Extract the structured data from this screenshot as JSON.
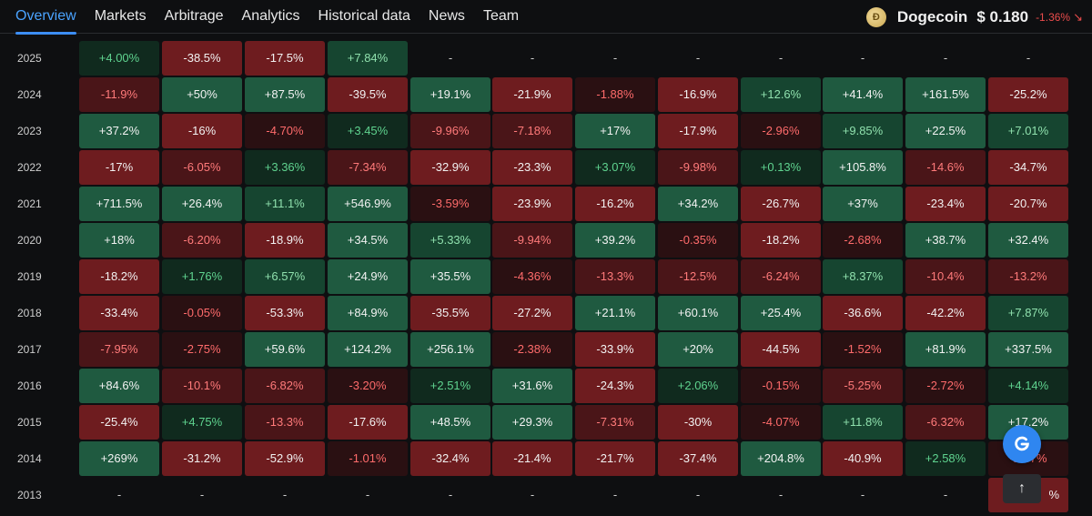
{
  "nav": {
    "tabs": [
      {
        "label": "Overview",
        "active": true
      },
      {
        "label": "Markets",
        "active": false
      },
      {
        "label": "Arbitrage",
        "active": false
      },
      {
        "label": "Analytics",
        "active": false
      },
      {
        "label": "Historical data",
        "active": false
      },
      {
        "label": "News",
        "active": false
      },
      {
        "label": "Team",
        "active": false
      }
    ]
  },
  "coin": {
    "name": "Dogecoin",
    "price": "$ 0.180",
    "change": "-1.36%",
    "change_icon": "arrow-down-right-icon"
  },
  "table": {
    "rows": [
      {
        "year": "2025",
        "cells": [
          "+4.00%",
          "-38.5%",
          "-17.5%",
          "+7.84%",
          "-",
          "-",
          "-",
          "-",
          "-",
          "-",
          "-",
          "-"
        ]
      },
      {
        "year": "2024",
        "cells": [
          "-11.9%",
          "+50%",
          "+87.5%",
          "-39.5%",
          "+19.1%",
          "-21.9%",
          "-1.88%",
          "-16.9%",
          "+12.6%",
          "+41.4%",
          "+161.5%",
          "-25.2%"
        ]
      },
      {
        "year": "2023",
        "cells": [
          "+37.2%",
          "-16%",
          "-4.70%",
          "+3.45%",
          "-9.96%",
          "-7.18%",
          "+17%",
          "-17.9%",
          "-2.96%",
          "+9.85%",
          "+22.5%",
          "+7.01%"
        ]
      },
      {
        "year": "2022",
        "cells": [
          "-17%",
          "-6.05%",
          "+3.36%",
          "-7.34%",
          "-32.9%",
          "-23.3%",
          "+3.07%",
          "-9.98%",
          "+0.13%",
          "+105.8%",
          "-14.6%",
          "-34.7%"
        ]
      },
      {
        "year": "2021",
        "cells": [
          "+711.5%",
          "+26.4%",
          "+11.1%",
          "+546.9%",
          "-3.59%",
          "-23.9%",
          "-16.2%",
          "+34.2%",
          "-26.7%",
          "+37%",
          "-23.4%",
          "-20.7%"
        ]
      },
      {
        "year": "2020",
        "cells": [
          "+18%",
          "-6.20%",
          "-18.9%",
          "+34.5%",
          "+5.33%",
          "-9.94%",
          "+39.2%",
          "-0.35%",
          "-18.2%",
          "-2.68%",
          "+38.7%",
          "+32.4%"
        ]
      },
      {
        "year": "2019",
        "cells": [
          "-18.2%",
          "+1.76%",
          "+6.57%",
          "+24.9%",
          "+35.5%",
          "-4.36%",
          "-13.3%",
          "-12.5%",
          "-6.24%",
          "+8.37%",
          "-10.4%",
          "-13.2%"
        ]
      },
      {
        "year": "2018",
        "cells": [
          "-33.4%",
          "-0.05%",
          "-53.3%",
          "+84.9%",
          "-35.5%",
          "-27.2%",
          "+21.1%",
          "+60.1%",
          "+25.4%",
          "-36.6%",
          "-42.2%",
          "+7.87%"
        ]
      },
      {
        "year": "2017",
        "cells": [
          "-7.95%",
          "-2.75%",
          "+59.6%",
          "+124.2%",
          "+256.1%",
          "-2.38%",
          "-33.9%",
          "+20%",
          "-44.5%",
          "-1.52%",
          "+81.9%",
          "+337.5%"
        ]
      },
      {
        "year": "2016",
        "cells": [
          "+84.6%",
          "-10.1%",
          "-6.82%",
          "-3.20%",
          "+2.51%",
          "+31.6%",
          "-24.3%",
          "+2.06%",
          "-0.15%",
          "-5.25%",
          "-2.72%",
          "+4.14%"
        ]
      },
      {
        "year": "2015",
        "cells": [
          "-25.4%",
          "+4.75%",
          "-13.3%",
          "-17.6%",
          "+48.5%",
          "+29.3%",
          "-7.31%",
          "-30%",
          "-4.07%",
          "+11.8%",
          "-6.32%",
          "+17.2%"
        ]
      },
      {
        "year": "2014",
        "cells": [
          "+269%",
          "-31.2%",
          "-52.9%",
          "-1.01%",
          "-32.4%",
          "-21.4%",
          "-21.7%",
          "-37.4%",
          "+204.8%",
          "-40.9%",
          "+2.58%",
          "-2.47%"
        ]
      },
      {
        "year": "2013",
        "cells": [
          "-",
          "-",
          "-",
          "-",
          "-",
          "-",
          "-",
          "-",
          "-",
          "-",
          "-",
          "%"
        ]
      }
    ]
  },
  "colors": {
    "accent": "#3d8ef5",
    "negative": "#ea4c4c",
    "positive": "#5fd38f"
  },
  "fab": {
    "assistant_icon": "g-logo-icon",
    "scroll_top_icon": "arrow-up-icon",
    "scroll_top_glyph": "↑"
  }
}
